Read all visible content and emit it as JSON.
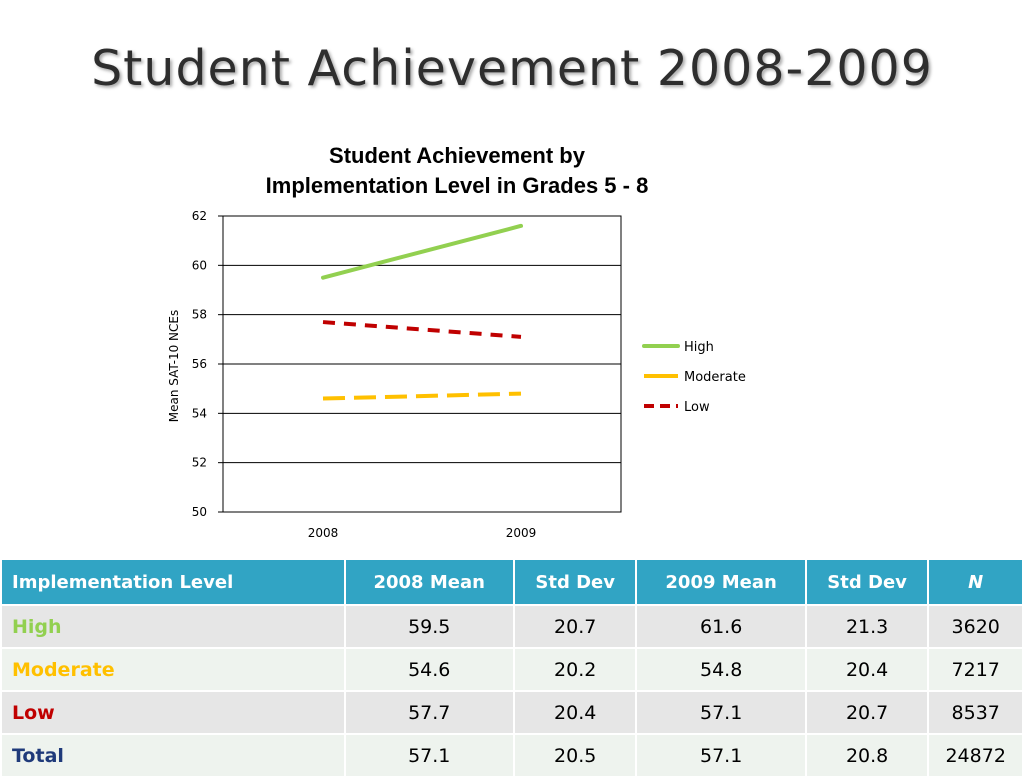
{
  "slide": {
    "title": "Student Achievement 2008-2009"
  },
  "colors": {
    "high": "#92d050",
    "moderate": "#ffc000",
    "low": "#c00000",
    "total": "#1f3a7a",
    "header_bg": "#31a4c4"
  },
  "chart_data": {
    "type": "line",
    "title_lines": [
      "Student Achievement by",
      "Implementation Level in Grades 5 - 8"
    ],
    "xlabel": "",
    "ylabel": "Mean SAT-10 NCEs",
    "x": [
      "2008",
      "2009"
    ],
    "ylim": [
      50,
      62
    ],
    "yticks": [
      "50",
      "52",
      "54",
      "56",
      "58",
      "60",
      "62"
    ],
    "grid": true,
    "legend_position": "right",
    "series": [
      {
        "name": "High",
        "values": [
          59.5,
          61.6
        ],
        "color": "#92d050",
        "dash": "solid"
      },
      {
        "name": "Moderate",
        "values": [
          54.6,
          54.8
        ],
        "color": "#ffc000",
        "dash": "long-dash"
      },
      {
        "name": "Low",
        "values": [
          57.7,
          57.1
        ],
        "color": "#c00000",
        "dash": "dash"
      }
    ]
  },
  "table": {
    "headers": [
      "Implementation Level",
      "2008 Mean",
      "Std Dev",
      "2009 Mean",
      "Std Dev",
      "N"
    ],
    "rows": [
      {
        "level": "High",
        "color": "#92d050",
        "cells": [
          "59.5",
          "20.7",
          "61.6",
          "21.3",
          "3620"
        ]
      },
      {
        "level": "Moderate",
        "color": "#ffc000",
        "cells": [
          "54.6",
          "20.2",
          "54.8",
          "20.4",
          "7217"
        ]
      },
      {
        "level": "Low",
        "color": "#c00000",
        "cells": [
          "57.7",
          "20.4",
          "57.1",
          "20.7",
          "8537"
        ]
      },
      {
        "level": "Total",
        "color": "#1f3a7a",
        "cells": [
          "57.1",
          "20.5",
          "57.1",
          "20.8",
          "24872"
        ]
      }
    ]
  }
}
